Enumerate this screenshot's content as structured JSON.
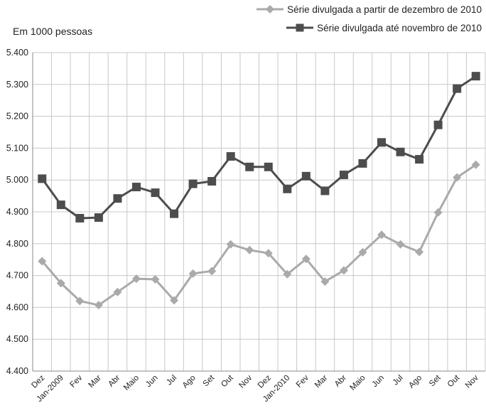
{
  "chart_data": {
    "type": "line",
    "ylabel": "Em 1000 pessoas",
    "ylim": [
      4400,
      5400
    ],
    "yticks": [
      4400,
      4500,
      4600,
      4700,
      4800,
      4900,
      5000,
      5100,
      5200,
      5300,
      5400
    ],
    "ytick_labels": [
      "4.400",
      "4.500",
      "4.600",
      "4.700",
      "4.800",
      "4.900",
      "5.000",
      "5.100",
      "5.200",
      "5.300",
      "5.400"
    ],
    "categories": [
      "Dez",
      "Jan-2009",
      "Fev",
      "Mar",
      "Abr",
      "Maio",
      "Jun",
      "Jul",
      "Ago",
      "Set",
      "Out",
      "Nov",
      "Dez",
      "Jan-2010",
      "Fev",
      "Mar",
      "Abr",
      "Maio",
      "Jun",
      "Jul",
      "Ago",
      "Set",
      "Out",
      "Nov"
    ],
    "grid": true,
    "legend_position": "top-right",
    "series": [
      {
        "name": "Série divulgada  a partir de dezembro de 2010",
        "color": "#aaaaaa",
        "marker": "diamond",
        "values": [
          4745,
          4676,
          4620,
          4607,
          4648,
          4690,
          4688,
          4622,
          4706,
          4714,
          4798,
          4780,
          4770,
          4704,
          4752,
          4681,
          4716,
          4773,
          4828,
          4798,
          4774,
          4898,
          5008,
          5048
        ]
      },
      {
        "name": "Série divulgada  até novembro de 2010",
        "color": "#4d4d4d",
        "marker": "square",
        "values": [
          5004,
          4922,
          4880,
          4882,
          4942,
          4978,
          4960,
          4894,
          4988,
          4996,
          5074,
          5041,
          5041,
          4972,
          5012,
          4966,
          5016,
          5052,
          5118,
          5088,
          5065,
          5173,
          5287,
          5326
        ]
      }
    ]
  }
}
